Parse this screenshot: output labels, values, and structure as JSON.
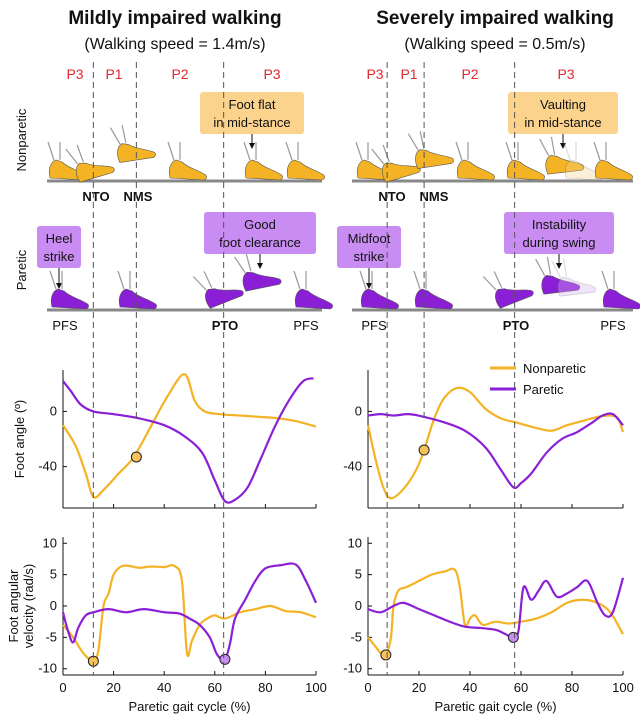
{
  "panels": {
    "left": {
      "title": "Mildly impaired walking",
      "subtitle": "(Walking speed = 1.4m/s)",
      "phases": [
        "P3",
        "P1",
        "P2",
        "P3"
      ],
      "nonparetic_note": [
        "Foot flat",
        "in mid-stance"
      ],
      "paretic_note_left": [
        "Heel",
        "strike"
      ],
      "paretic_note_right": [
        "Good",
        "foot clearance"
      ],
      "events_top": [
        "NTO",
        "NMS"
      ],
      "events_bottom": [
        "PFS",
        "PTO",
        "PFS"
      ]
    },
    "right": {
      "title": "Severely impaired walking",
      "subtitle": "(Walking speed = 0.5m/s)",
      "phases": [
        "P3",
        "P1",
        "P2",
        "P3"
      ],
      "nonparetic_note": [
        "Vaulting",
        "in mid-stance"
      ],
      "paretic_note_left": [
        "Midfoot",
        "strike"
      ],
      "paretic_note_right": [
        "Instability",
        "during swing"
      ],
      "events_top": [
        "NTO",
        "NMS"
      ],
      "events_bottom": [
        "PFS",
        "PTO",
        "PFS"
      ]
    }
  },
  "row_labels": {
    "nonparetic": "Nonparetic",
    "paretic": "Paretic"
  },
  "colors": {
    "nonparetic": "#f4b324",
    "paretic": "#8a1fd6",
    "orange_box": "#fbd38d",
    "purple_box": "#c98cf3",
    "phase_text": "#e2282e"
  },
  "chart_data": [
    {
      "type": "line",
      "panel": "left-angle",
      "ylabel": "Foot angle (º)",
      "ylim": [
        -70,
        30
      ],
      "yticks": [
        "0",
        "-40"
      ],
      "xlim": [
        0,
        100
      ],
      "xticks": [
        "0",
        "20",
        "40",
        "60",
        "80",
        "100"
      ],
      "grid": false,
      "series": [
        {
          "name": "Nonparetic",
          "x": [
            0,
            5,
            9,
            12,
            16,
            22,
            28,
            35,
            41,
            48,
            52,
            56,
            62,
            70,
            78,
            85,
            92,
            100
          ],
          "values": [
            -10,
            -25,
            -45,
            -62,
            -57,
            -45,
            -33,
            -10,
            10,
            27,
            8,
            0,
            -2,
            -3,
            -4,
            -5,
            -7,
            -11
          ]
        },
        {
          "name": "Paretic",
          "x": [
            0,
            3,
            7,
            12,
            20,
            30,
            40,
            48,
            55,
            60,
            64,
            68,
            73,
            78,
            84,
            90,
            95,
            99
          ],
          "values": [
            22,
            15,
            5,
            0,
            -2,
            -5,
            -10,
            -18,
            -30,
            -50,
            -65,
            -64,
            -55,
            -35,
            -10,
            10,
            22,
            24
          ]
        }
      ],
      "markers": [
        {
          "series": "Nonparetic",
          "x": 29,
          "y": -33
        }
      ]
    },
    {
      "type": "line",
      "panel": "right-angle",
      "ylim": [
        -70,
        30
      ],
      "yticks": [
        "0",
        "-40"
      ],
      "xlim": [
        0,
        100
      ],
      "xticks": [
        "0",
        "20",
        "40",
        "60",
        "80",
        "100"
      ],
      "grid": false,
      "series": [
        {
          "name": "Nonparetic",
          "x": [
            0,
            3,
            6,
            9,
            14,
            19,
            22,
            26,
            30,
            35,
            40,
            46,
            52,
            58,
            66,
            72,
            78,
            84,
            90,
            95,
            98,
            100
          ],
          "values": [
            -10,
            -35,
            -55,
            -63,
            -56,
            -42,
            -28,
            -5,
            10,
            17,
            14,
            2,
            -5,
            -8,
            -12,
            -14,
            -10,
            -7,
            -4,
            -3,
            -5,
            -15
          ]
        },
        {
          "name": "Paretic",
          "x": [
            0,
            5,
            10,
            16,
            22,
            30,
            38,
            46,
            52,
            57,
            60,
            64,
            70,
            76,
            82,
            88,
            92,
            96,
            100
          ],
          "values": [
            -3,
            -2,
            -3,
            -2,
            -4,
            -8,
            -14,
            -26,
            -42,
            -55,
            -52,
            -45,
            -30,
            -20,
            -15,
            -8,
            -3,
            -2,
            -10
          ]
        }
      ],
      "markers": [
        {
          "series": "Nonparetic",
          "x": 22,
          "y": -28
        }
      ]
    },
    {
      "type": "line",
      "panel": "left-velocity",
      "ylabel": "Foot angular velocity (rad/s)",
      "xlabel": "Paretic gait cycle (%)",
      "ylim": [
        -11,
        11
      ],
      "yticks": [
        "10",
        "5",
        "0",
        "-5",
        "-10"
      ],
      "xlim": [
        0,
        100
      ],
      "xticks": [
        "0",
        "20",
        "40",
        "60",
        "80",
        "100"
      ],
      "grid": false,
      "series": [
        {
          "name": "Nonparetic",
          "x": [
            0,
            4,
            8,
            12,
            14,
            16,
            18,
            20,
            23,
            26,
            30,
            35,
            40,
            44,
            47,
            49,
            51,
            54,
            57,
            60,
            64,
            70,
            76,
            82,
            88,
            94,
            100
          ],
          "values": [
            -3,
            -5,
            -7.5,
            -8.8,
            -7,
            0,
            2,
            5,
            6.3,
            6.4,
            6.1,
            6.3,
            6.2,
            6.4,
            4,
            -7.5,
            -5.5,
            -3,
            -2,
            -1.5,
            -2,
            -1,
            -0.5,
            0,
            -0.8,
            -1,
            -1.8
          ]
        },
        {
          "name": "Paretic",
          "x": [
            0,
            2,
            4,
            6,
            9,
            12,
            18,
            25,
            32,
            40,
            46,
            50,
            54,
            58,
            61,
            64,
            66,
            68,
            72,
            76,
            80,
            86,
            92,
            96,
            100
          ],
          "values": [
            -1,
            -4,
            -5.8,
            -3.5,
            -1.5,
            -1,
            -0.5,
            -1,
            -0.5,
            -1,
            -1.2,
            -2,
            -3,
            -5,
            -7.8,
            -8.5,
            -6,
            -2,
            1,
            4,
            6,
            6.5,
            6.6,
            4,
            0.5
          ]
        }
      ],
      "markers": [
        {
          "series": "Nonparetic",
          "x": 12,
          "y": -8.8
        },
        {
          "series": "Paretic",
          "x": 64,
          "y": -8.5
        }
      ]
    },
    {
      "type": "line",
      "panel": "right-velocity",
      "xlabel": "Paretic gait cycle (%)",
      "ylim": [
        -11,
        11
      ],
      "yticks": [
        "10",
        "5",
        "0",
        "-5",
        "-10"
      ],
      "xlim": [
        0,
        100
      ],
      "xticks": [
        "0",
        "20",
        "40",
        "60",
        "80",
        "100"
      ],
      "grid": false,
      "series": [
        {
          "name": "Nonparetic",
          "x": [
            0,
            3,
            5,
            7,
            9,
            10,
            12,
            15,
            20,
            25,
            30,
            34,
            36,
            38,
            40,
            42,
            45,
            50,
            55,
            60,
            66,
            72,
            78,
            84,
            90,
            95,
            100
          ],
          "values": [
            -5,
            -6.5,
            -7.5,
            -7.8,
            -5,
            0,
            2.5,
            3,
            4,
            5,
            5.5,
            5.8,
            3,
            -3,
            -2,
            -1.5,
            -3,
            -2.5,
            -2.8,
            -2.5,
            -2,
            -1,
            0.5,
            1,
            0.5,
            -1,
            -4.5
          ]
        },
        {
          "name": "Paretic",
          "x": [
            0,
            5,
            10,
            14,
            20,
            26,
            32,
            38,
            44,
            50,
            54,
            57,
            59,
            61,
            64,
            67,
            70,
            74,
            78,
            82,
            86,
            90,
            93,
            96,
            100
          ],
          "values": [
            -0.5,
            -1,
            0,
            0.5,
            -0.5,
            -1.5,
            -2.5,
            -3.3,
            -3.5,
            -3.8,
            -4.5,
            -5,
            -4,
            3,
            1,
            2.5,
            4,
            1.5,
            2,
            3,
            4,
            0.5,
            -1.5,
            -1,
            4.5
          ]
        }
      ],
      "markers": [
        {
          "series": "Nonparetic",
          "x": 7,
          "y": -7.8
        },
        {
          "series": "Paretic",
          "x": 57,
          "y": -5
        }
      ]
    }
  ],
  "legend": {
    "items": [
      "Nonparetic",
      "Paretic"
    ],
    "placement": "top-right"
  }
}
